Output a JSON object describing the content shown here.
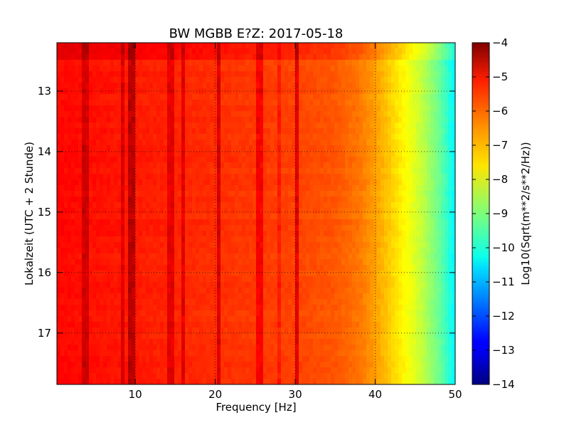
{
  "chart_data": {
    "type": "heatmap",
    "title": "BW MGBB E?Z: 2017-05-18",
    "xlabel": "Frequency [Hz]",
    "ylabel": "Lokalzeit (UTC + 2 Stunde)",
    "xlim": [
      0.2,
      50
    ],
    "ylim": [
      12.2,
      17.85
    ],
    "y_inverted": true,
    "grid": true,
    "x_ticks": [
      10,
      20,
      30,
      40,
      50
    ],
    "x_tick_labels": [
      "10",
      "20",
      "30",
      "40",
      "50"
    ],
    "y_ticks": [
      13,
      14,
      15,
      16,
      17
    ],
    "y_tick_labels": [
      "13",
      "14",
      "15",
      "16",
      "17"
    ],
    "colorbar": {
      "label": "Log10(Sqrt(m**2/s**2/Hz))",
      "colormap": "jet",
      "range": [
        -14,
        -4
      ],
      "ticks": [
        -4,
        -5,
        -6,
        -7,
        -8,
        -9,
        -10,
        -11,
        -12,
        -13,
        -14
      ],
      "tick_labels": [
        "−4",
        "−5",
        "−6",
        "−7",
        "−8",
        "−9",
        "−10",
        "−11",
        "−12",
        "−13",
        "−14"
      ]
    },
    "spectrum_profile": {
      "frequency_hz": [
        0,
        5,
        10,
        20,
        30,
        35,
        38,
        40,
        42,
        44,
        46,
        48,
        50
      ],
      "log10_amplitude": [
        -5.3,
        -5.4,
        -5.5,
        -5.7,
        -5.9,
        -6.1,
        -6.4,
        -6.8,
        -7.3,
        -7.8,
        -8.4,
        -9.2,
        -10.3
      ]
    },
    "spectral_lines": [
      {
        "frequency_hz": 3.5,
        "log10_amplitude": -4.8
      },
      {
        "frequency_hz": 4.0,
        "log10_amplitude": -4.8
      },
      {
        "frequency_hz": 8.5,
        "log10_amplitude": -4.9
      },
      {
        "frequency_hz": 9.5,
        "log10_amplitude": -4.6
      },
      {
        "frequency_hz": 14.5,
        "log10_amplitude": -5.0
      },
      {
        "frequency_hz": 16.0,
        "log10_amplitude": -5.0
      },
      {
        "frequency_hz": 20.3,
        "log10_amplitude": -4.9
      },
      {
        "frequency_hz": 25.5,
        "log10_amplitude": -5.2
      },
      {
        "frequency_hz": 28.0,
        "log10_amplitude": -5.5
      },
      {
        "frequency_hz": 30.2,
        "log10_amplitude": -5.0
      }
    ],
    "time_bands": [
      {
        "start_hour": 12.2,
        "end_hour": 12.45,
        "log10_amplitude_offset": 0.3
      }
    ]
  }
}
